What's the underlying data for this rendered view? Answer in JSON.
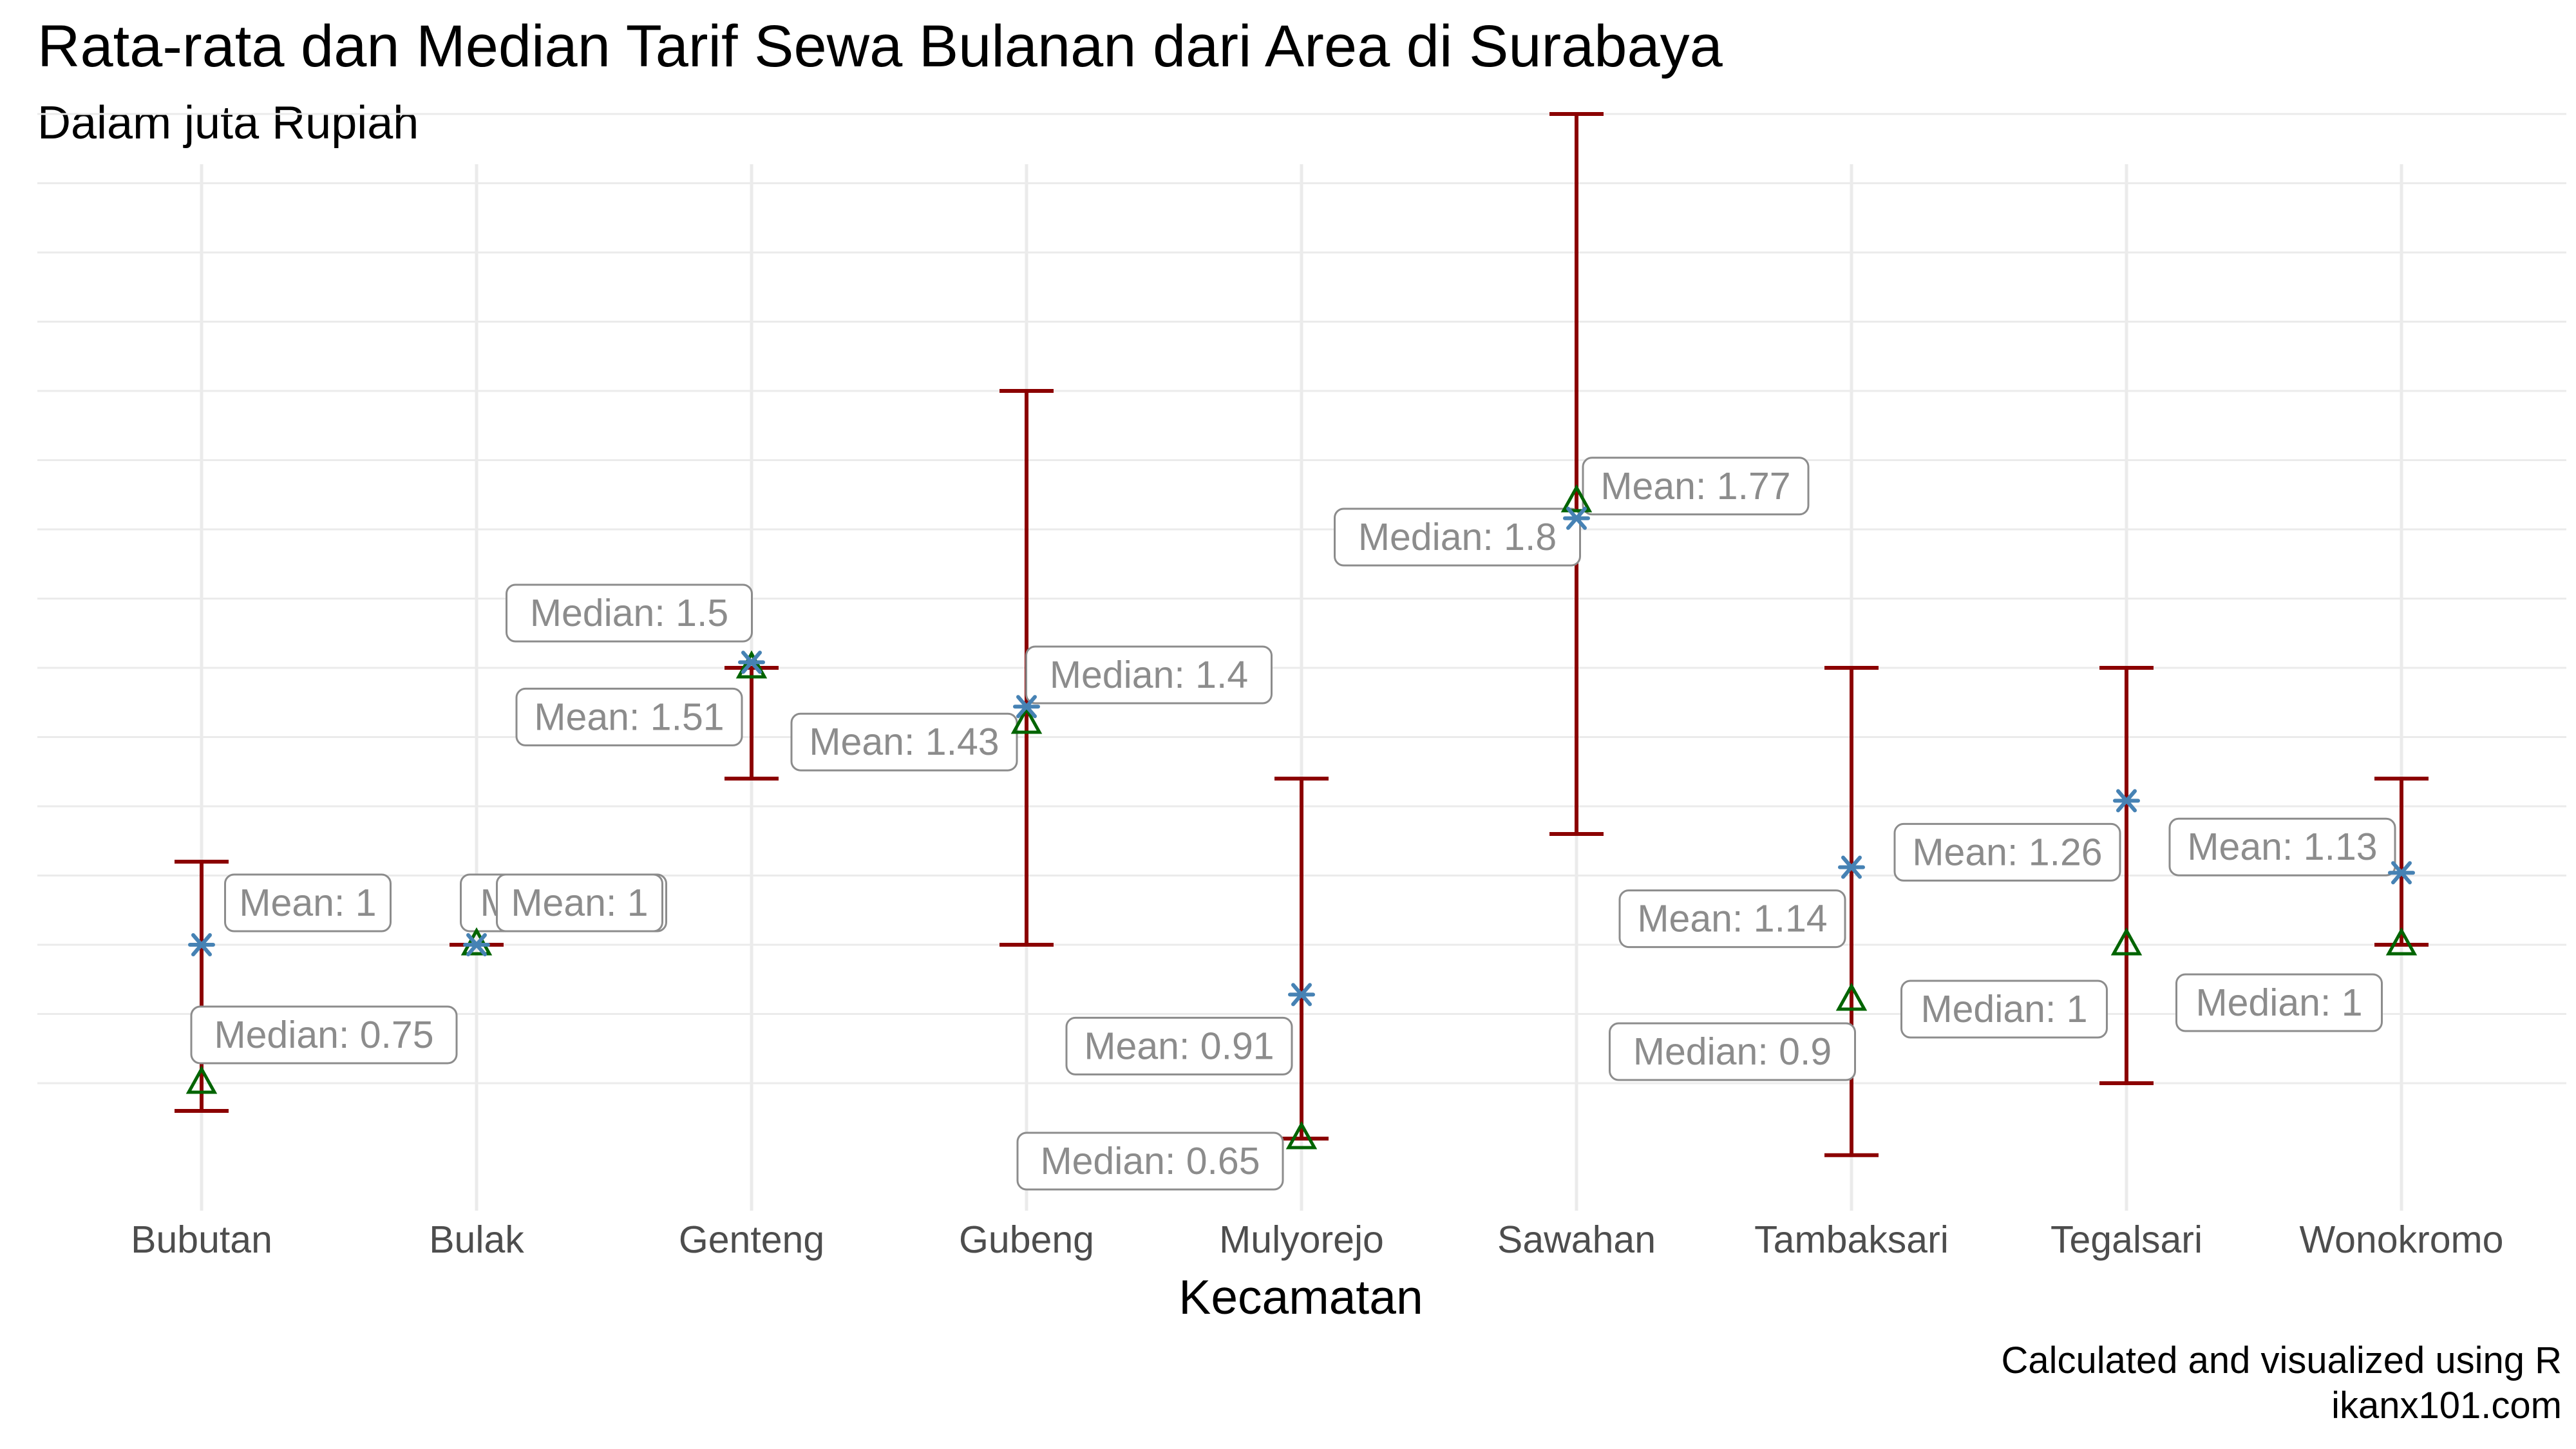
{
  "chart_data": {
    "type": "errorbar",
    "title": "Rata-rata dan Median Tarif Sewa Bulanan dari Area di Surabaya",
    "subtitle": "Dalam juta Rupiah",
    "xlabel": "Kecamatan",
    "ylabel": "",
    "caption": [
      "Calculated and visualized using R",
      "ikanx101.com"
    ],
    "categories": [
      "Bubutan",
      "Bulak",
      "Genteng",
      "Gubeng",
      "Mulyorejo",
      "Sawahan",
      "Tambaksari",
      "Tegalsari",
      "Wonokromo"
    ],
    "mean": [
      1,
      1,
      1.51,
      1.43,
      0.91,
      1.77,
      1.14,
      1.26,
      1.13
    ],
    "median": [
      0.75,
      1,
      1.5,
      1.4,
      0.65,
      1.8,
      0.9,
      1,
      1
    ],
    "ymin": [
      0.7,
      1,
      1.3,
      1,
      0.65,
      1.2,
      0.62,
      0.75,
      1
    ],
    "ymax": [
      1.15,
      1,
      1.5,
      2,
      1.3,
      2.5,
      1.5,
      1.5,
      1.3
    ],
    "mean_labels": [
      "Mean: 1",
      "Mean: 1",
      "Mean: 1.51",
      "Mean: 1.43",
      "Mean: 0.91",
      "Mean: 1.77",
      "Mean: 1.14",
      "Mean: 1.26",
      "Mean: 1.13"
    ],
    "median_labels": [
      "Median: 0.75",
      "Median: 1",
      "Median: 1.5",
      "Median: 1.4",
      "Median: 0.65",
      "Median: 1.8",
      "Median: 0.9",
      "Median: 1",
      "Median: 1"
    ],
    "ylim": [
      0.5,
      2.5
    ],
    "y_gridlines": [
      0.75,
      1,
      1.25,
      1.5,
      1.75,
      2,
      2.25,
      2.5
    ],
    "grid": true,
    "legend": "none",
    "colors": {
      "errorbar": "#8b0000",
      "mean_marker": "#4682b4",
      "median_marker": "#006400",
      "label_text": "#8c8c8c",
      "label_border": "#8c8c8c",
      "grid": "#ebebeb"
    }
  }
}
